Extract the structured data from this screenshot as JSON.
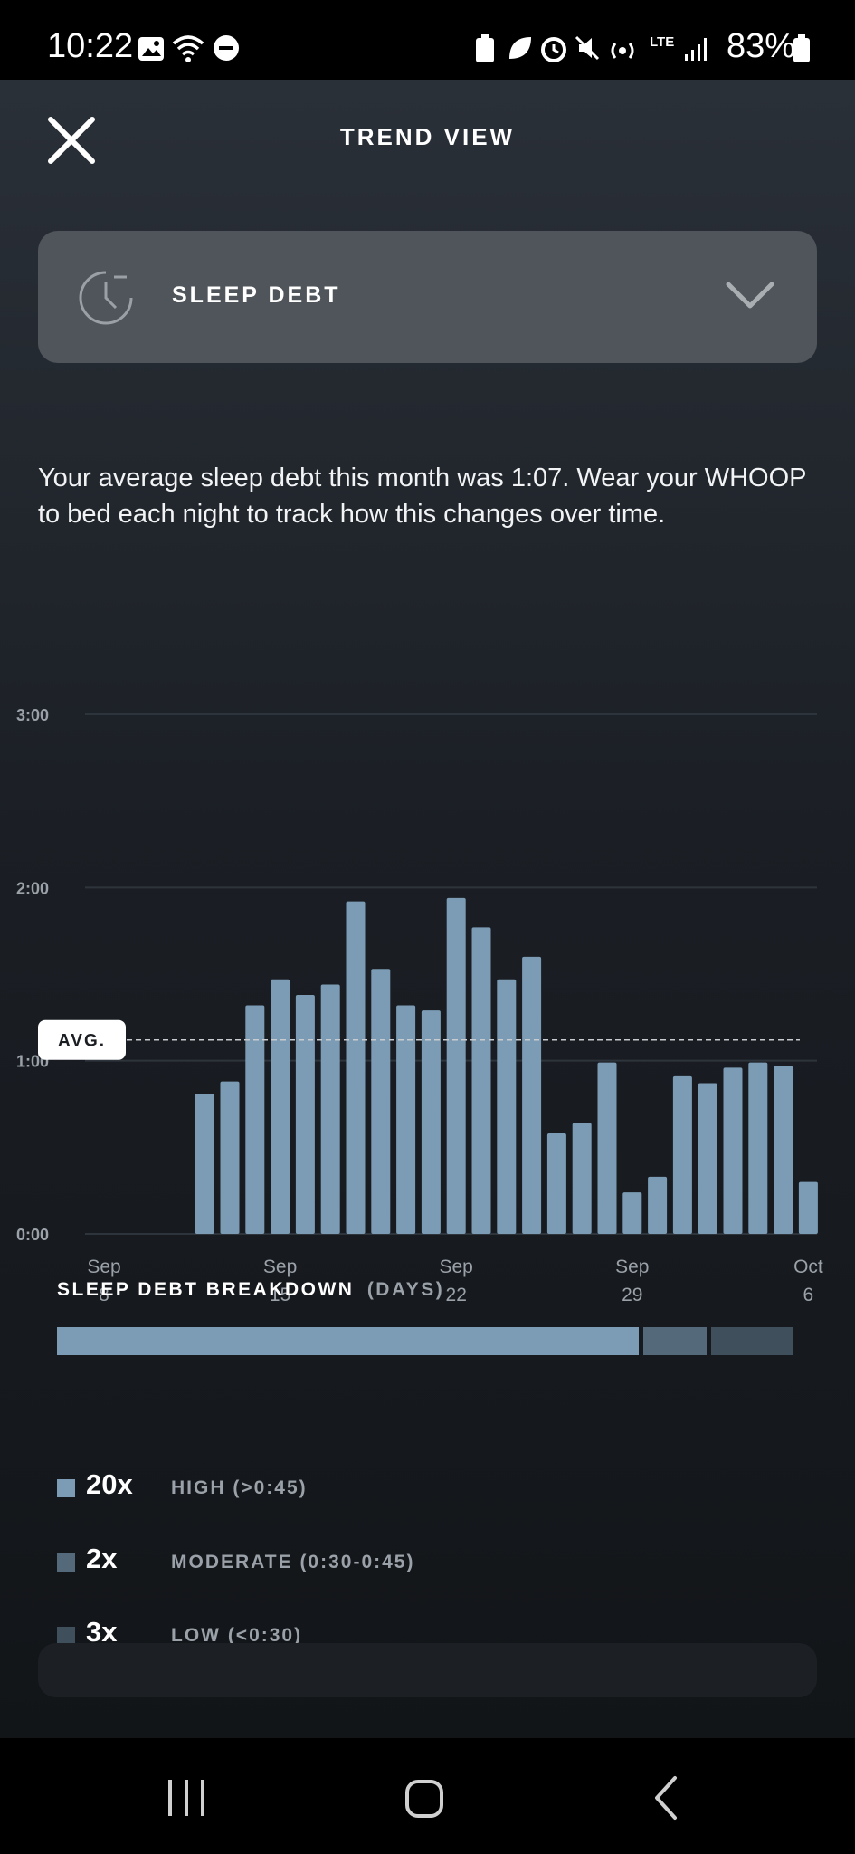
{
  "status_bar": {
    "time": "10:22",
    "battery": "83%",
    "network": "LTE"
  },
  "header": {
    "title": "TREND VIEW",
    "close_icon": "close-icon"
  },
  "metric_selector": {
    "icon": "clock-icon",
    "label": "SLEEP DEBT",
    "chevron_icon": "chevron-down-icon"
  },
  "description": "Your average sleep debt this month was 1:07. Wear your WHOOP to bed each night to track how this changes over time.",
  "chart_data": {
    "type": "bar",
    "y_tick_labels": [
      "3:00",
      "2:00",
      "1:00",
      "0:00"
    ],
    "y_ticks_hours": [
      3,
      2,
      1,
      0
    ],
    "ylim_hours": [
      0,
      3
    ],
    "x_tick_labels": [
      {
        "month": "Sep",
        "day": "8",
        "index": 0
      },
      {
        "month": "Sep",
        "day": "15",
        "index": 7
      },
      {
        "month": "Sep",
        "day": "22",
        "index": 14
      },
      {
        "month": "Sep",
        "day": "29",
        "index": 21
      },
      {
        "month": "Oct",
        "day": "6",
        "index": 28
      }
    ],
    "start_index": 4,
    "values_hours": [
      0.81,
      0.88,
      1.32,
      1.47,
      1.38,
      1.44,
      1.92,
      1.53,
      1.32,
      1.29,
      1.94,
      1.77,
      1.47,
      1.6,
      0.58,
      0.64,
      0.99,
      0.24,
      0.33,
      0.91,
      0.87,
      0.96,
      0.99,
      0.97,
      0.3
    ],
    "average_hours": 1.12,
    "average_label": "AVG.",
    "bar_color": "#7b9cb4",
    "grid": true
  },
  "breakdown": {
    "title": "SLEEP DEBT BREAKDOWN",
    "unit": "(DAYS)",
    "items": [
      {
        "count": 20,
        "count_label": "20x",
        "label": "HIGH (>0:45)",
        "color": "#7b9cb4"
      },
      {
        "count": 2,
        "count_label": "2x",
        "label": "MODERATE (0:30-0:45)",
        "color": "#54697a"
      },
      {
        "count": 3,
        "count_label": "3x",
        "label": "LOW (<0:30)",
        "color": "#3f4f5c"
      }
    ]
  },
  "nav_bar": {
    "recents_icon": "recents-icon",
    "home_icon": "home-icon",
    "back_icon": "back-icon"
  }
}
